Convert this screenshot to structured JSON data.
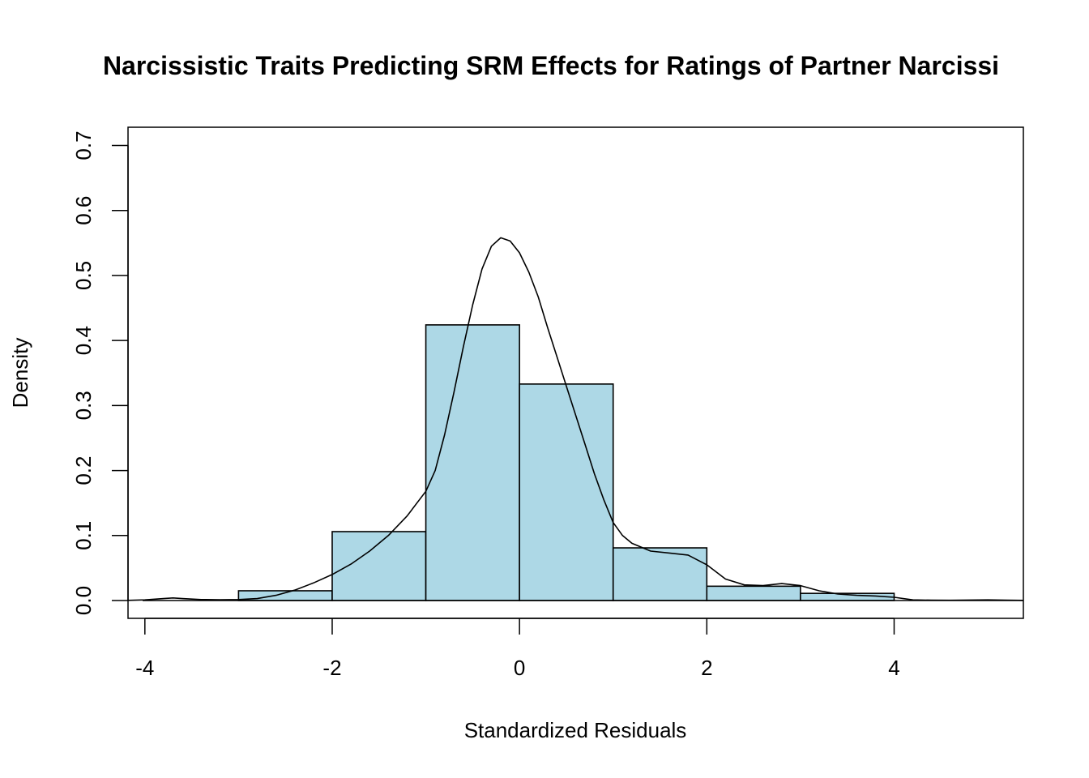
{
  "chart_data": {
    "type": "bar",
    "title": "Narcissistic Traits Predicting SRM Effects for Ratings of Partner Narcissi",
    "xlabel": "Standardized Residuals",
    "ylabel": "Density",
    "xlim": [
      -4.18,
      5.38
    ],
    "ylim": [
      0,
      0.7
    ],
    "x_ticks": [
      -4,
      -2,
      0,
      2,
      4
    ],
    "x_tick_labels": [
      "-4",
      "-2",
      "0",
      "2",
      "4"
    ],
    "y_ticks": [
      0.0,
      0.1,
      0.2,
      0.3,
      0.4,
      0.5,
      0.6,
      0.7
    ],
    "y_tick_labels": [
      "0.0",
      "0.1",
      "0.2",
      "0.3",
      "0.4",
      "0.5",
      "0.6",
      "0.7"
    ],
    "bar_fill": "#add8e6",
    "bins": [
      {
        "x0": -3,
        "x1": -2,
        "density": 0.015
      },
      {
        "x0": -2,
        "x1": -1,
        "density": 0.106
      },
      {
        "x0": -1,
        "x1": 0,
        "density": 0.424
      },
      {
        "x0": 0,
        "x1": 1,
        "density": 0.333
      },
      {
        "x0": 1,
        "x1": 2,
        "density": 0.081
      },
      {
        "x0": 2,
        "x1": 3,
        "density": 0.022
      },
      {
        "x0": 3,
        "x1": 4,
        "density": 0.011
      }
    ],
    "density_curve": [
      [
        -4.18,
        0.0002
      ],
      [
        -4.0,
        0.001
      ],
      [
        -3.8,
        0.003
      ],
      [
        -3.7,
        0.004
      ],
      [
        -3.6,
        0.003
      ],
      [
        -3.4,
        0.0015
      ],
      [
        -3.2,
        0.0012
      ],
      [
        -3.0,
        0.0015
      ],
      [
        -2.8,
        0.003
      ],
      [
        -2.6,
        0.008
      ],
      [
        -2.4,
        0.016
      ],
      [
        -2.2,
        0.027
      ],
      [
        -2.0,
        0.04
      ],
      [
        -1.8,
        0.056
      ],
      [
        -1.6,
        0.076
      ],
      [
        -1.4,
        0.1
      ],
      [
        -1.2,
        0.13
      ],
      [
        -1.0,
        0.168
      ],
      [
        -0.9,
        0.2
      ],
      [
        -0.8,
        0.255
      ],
      [
        -0.7,
        0.32
      ],
      [
        -0.6,
        0.39
      ],
      [
        -0.5,
        0.455
      ],
      [
        -0.4,
        0.51
      ],
      [
        -0.3,
        0.545
      ],
      [
        -0.2,
        0.558
      ],
      [
        -0.1,
        0.553
      ],
      [
        0.0,
        0.535
      ],
      [
        0.1,
        0.505
      ],
      [
        0.2,
        0.467
      ],
      [
        0.3,
        0.42
      ],
      [
        0.4,
        0.375
      ],
      [
        0.5,
        0.33
      ],
      [
        0.6,
        0.285
      ],
      [
        0.7,
        0.24
      ],
      [
        0.8,
        0.195
      ],
      [
        0.9,
        0.155
      ],
      [
        1.0,
        0.12
      ],
      [
        1.1,
        0.1
      ],
      [
        1.2,
        0.088
      ],
      [
        1.4,
        0.076
      ],
      [
        1.6,
        0.073
      ],
      [
        1.8,
        0.07
      ],
      [
        2.0,
        0.055
      ],
      [
        2.2,
        0.033
      ],
      [
        2.4,
        0.024
      ],
      [
        2.6,
        0.023
      ],
      [
        2.8,
        0.026
      ],
      [
        3.0,
        0.023
      ],
      [
        3.2,
        0.015
      ],
      [
        3.4,
        0.01
      ],
      [
        3.6,
        0.008
      ],
      [
        3.8,
        0.007
      ],
      [
        4.0,
        0.005
      ],
      [
        4.2,
        0.001
      ],
      [
        4.4,
        0.0005
      ],
      [
        4.6,
        0.0004
      ],
      [
        4.8,
        0.0008
      ],
      [
        5.0,
        0.001
      ],
      [
        5.2,
        0.0006
      ],
      [
        5.38,
        0.0002
      ]
    ]
  }
}
